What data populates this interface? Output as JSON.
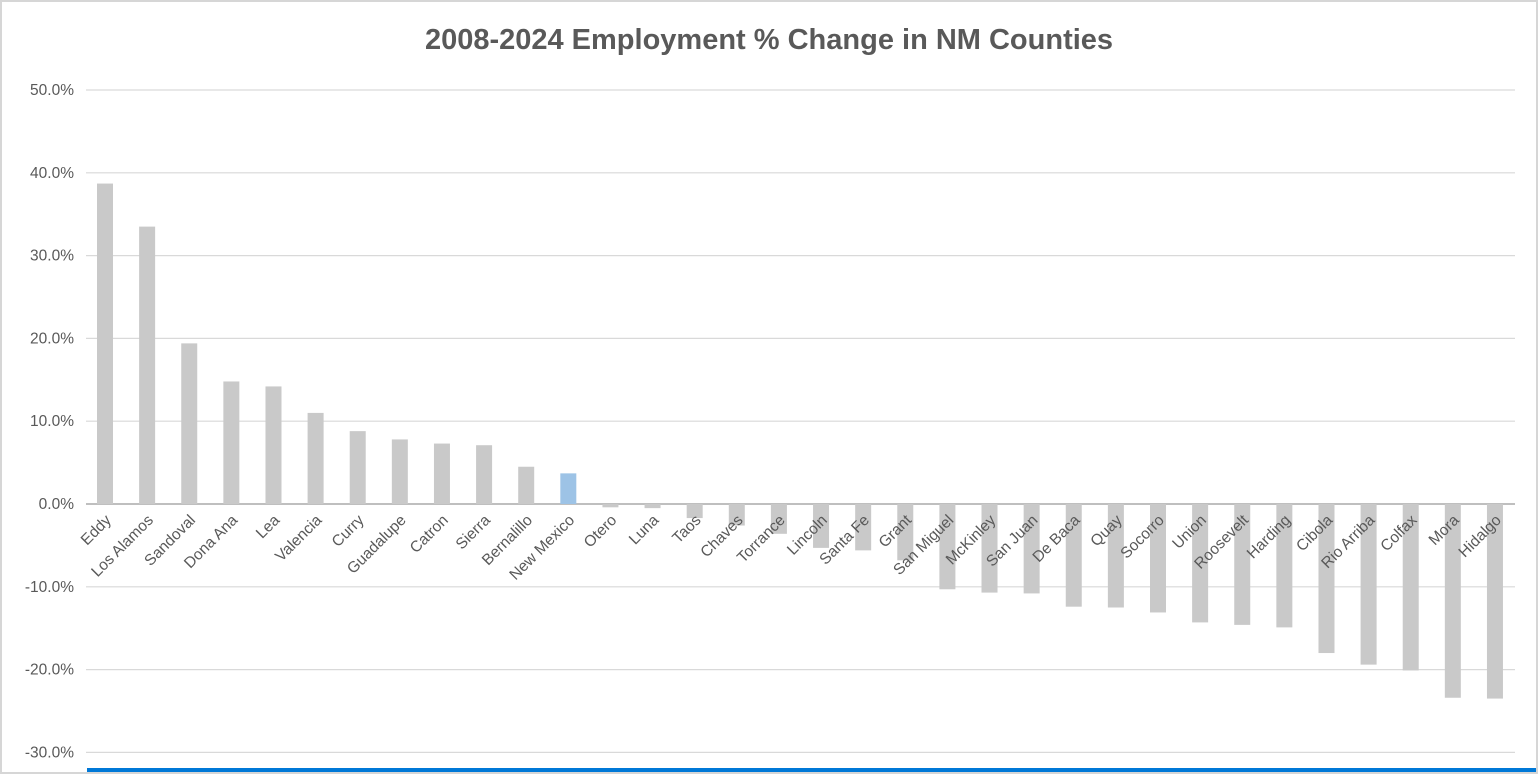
{
  "chart_data": {
    "type": "bar",
    "title": "2008-2024 Employment % Change in NM Counties",
    "xlabel": "",
    "ylabel": "",
    "categories": [
      "Eddy",
      "Los Alamos",
      "Sandoval",
      "Dona Ana",
      "Lea",
      "Valencia",
      "Curry",
      "Guadalupe",
      "Catron",
      "Sierra",
      "Bernalillo",
      "New Mexico",
      "Otero",
      "Luna",
      "Taos",
      "Chaves",
      "Torrance",
      "Lincoln",
      "Santa Fe",
      "Grant",
      "San Miguel",
      "McKinley",
      "San Juan",
      "De Baca",
      "Quay",
      "Socorro",
      "Union",
      "Roosevelt",
      "Harding",
      "Cibola",
      "Rio Arriba",
      "Colfax",
      "Mora",
      "Hidalgo"
    ],
    "values": [
      38.7,
      33.5,
      19.4,
      14.8,
      14.2,
      11.0,
      8.8,
      7.8,
      7.3,
      7.1,
      4.5,
      3.7,
      -0.4,
      -0.5,
      -1.7,
      -2.6,
      -3.6,
      -5.3,
      -5.6,
      -6.8,
      -10.3,
      -10.7,
      -10.8,
      -12.4,
      -12.5,
      -13.1,
      -14.3,
      -14.6,
      -14.9,
      -18.0,
      -19.4,
      -20.1,
      -23.4,
      -23.5
    ],
    "highlight_category": "New Mexico",
    "y_ticks": [
      "50.0%",
      "40.0%",
      "30.0%",
      "20.0%",
      "10.0%",
      "0.0%",
      "-10.0%",
      "-20.0%",
      "-30.0%"
    ],
    "ylim": [
      -30,
      50
    ],
    "ytick_step": 10,
    "grid": true,
    "legend": false,
    "bar_color": "#c9c9c9",
    "highlight_color": "#9dc3e6"
  },
  "colors": {
    "title_text": "#595959",
    "axis_label_text": "#595959",
    "gridline": "#d9d9d9",
    "zero_axis_line": "#bfbfbf",
    "frame_border": "#d6d6d6",
    "bottom_strip": "#0078d7"
  }
}
